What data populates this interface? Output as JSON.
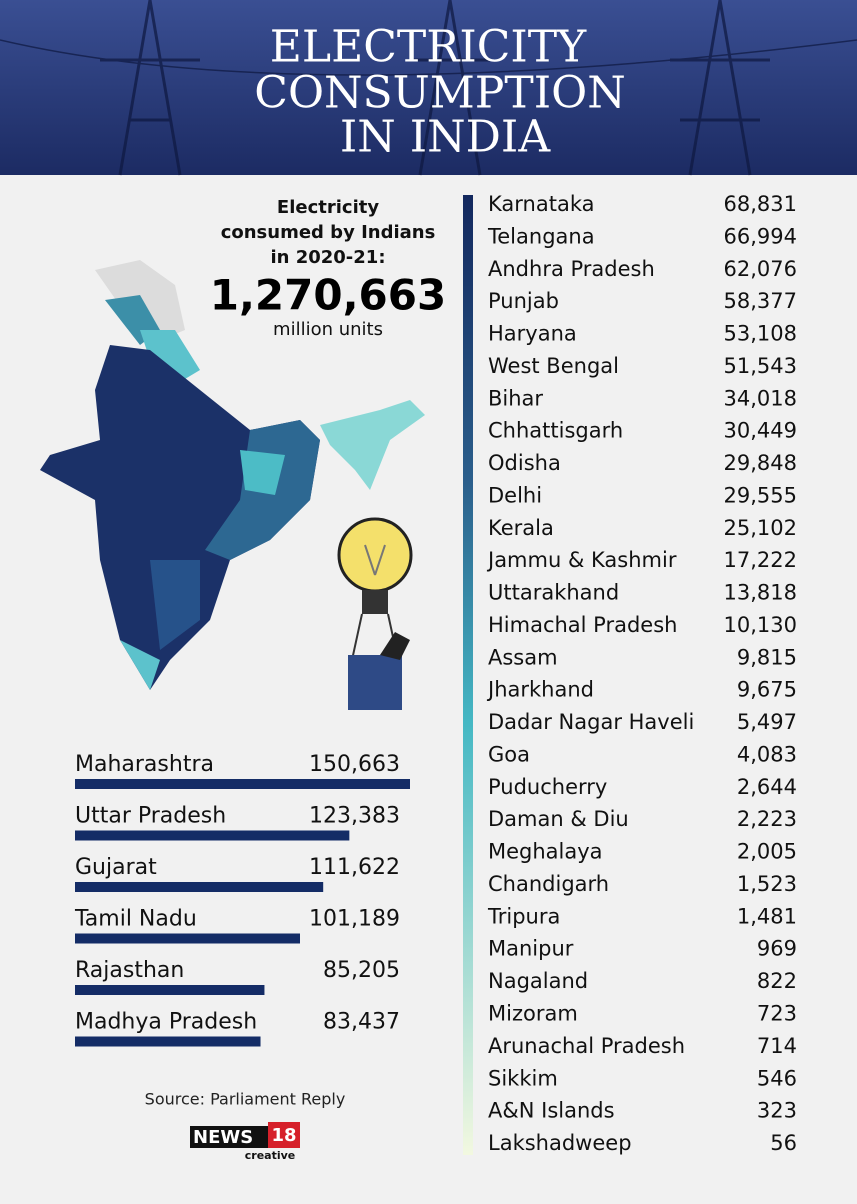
{
  "header": {
    "title": [
      "ELECTRICITY",
      "CONSUMPTION",
      "IN INDIA"
    ]
  },
  "intro": {
    "lines": [
      "Electricity",
      "consumed by Indians",
      "in 2020-21:"
    ],
    "total": "1,270,663",
    "unit": "million units"
  },
  "top_states": {
    "names": [
      "Maharashtra",
      "Uttar Pradesh",
      "Gujarat",
      "Tamil Nadu",
      "Rajasthan",
      "Madhya Pradesh"
    ],
    "values": [
      150663,
      123383,
      111622,
      101189,
      85205,
      83437
    ],
    "value_labels": [
      "150,663",
      "123,383",
      "111,622",
      "101,189",
      "85,205",
      "83,437"
    ],
    "color": "#142c66"
  },
  "other_states": {
    "names": [
      "Karnataka",
      "Telangana",
      "Andhra Pradesh",
      "Punjab",
      "Haryana",
      "West Bengal",
      "Bihar",
      "Chhattisgarh",
      "Odisha",
      "Delhi",
      "Kerala",
      "Jammu & Kashmir",
      "Uttarakhand",
      "Himachal Pradesh",
      "Assam",
      "Jharkhand",
      "Dadar Nagar Haveli",
      "Goa",
      "Puducherry",
      "Daman & Diu",
      "Meghalaya",
      "Chandigarh",
      "Tripura",
      "Manipur",
      "Nagaland",
      "Mizoram",
      "Arunachal Pradesh",
      "Sikkim",
      "A&N Islands",
      "Lakshadweep"
    ],
    "values": [
      "68,831",
      "66,994",
      "62,076",
      "58,377",
      "53,108",
      "51,543",
      "34,018",
      "30,449",
      "29,848",
      "29,555",
      "25,102",
      "17,222",
      "13,818",
      "10,130",
      "9,815",
      "9,675",
      "5,497",
      "4,083",
      "2,644",
      "2,223",
      "2,005",
      "1,523",
      "1,481",
      "969",
      "822",
      "723",
      "714",
      "546",
      "323",
      "56"
    ]
  },
  "source": "Source: Parliament Reply",
  "logo": {
    "brand": "NEWS",
    "number": "18",
    "sub": "creative"
  }
}
